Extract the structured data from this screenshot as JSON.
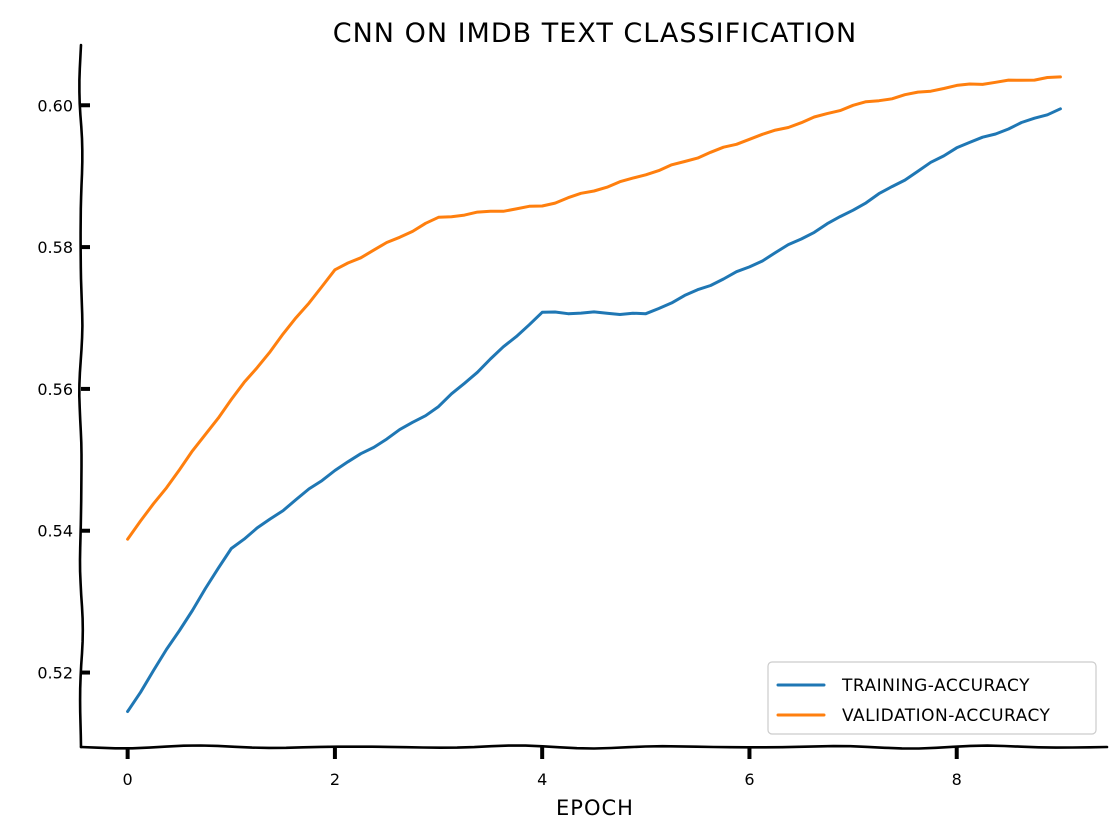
{
  "chart_data": {
    "type": "line",
    "title": "CNN ON IMDB TEXT CLASSIFICATION",
    "xlabel": "EPOCH",
    "ylabel": "",
    "xlim": [
      -0.45,
      9.45
    ],
    "ylim": [
      0.5095,
      0.6085
    ],
    "xticks": [
      0,
      2,
      4,
      6,
      8
    ],
    "yticks": [
      0.52,
      0.54,
      0.56,
      0.58,
      0.6
    ],
    "xtick_labels": [
      "0",
      "2",
      "4",
      "6",
      "8"
    ],
    "ytick_labels": [
      "0.52",
      "0.54",
      "0.56",
      "0.58",
      "0.60"
    ],
    "grid": false,
    "legend_position": "bottom-right",
    "x": [
      0,
      1,
      2,
      3,
      4,
      5,
      6,
      7,
      8,
      9
    ],
    "series": [
      {
        "name": "TRAINING-ACCURACY",
        "color": "#1f77b4",
        "values": [
          0.5145,
          0.5375,
          0.5485,
          0.5575,
          0.5708,
          0.5706,
          0.5772,
          0.5852,
          0.594,
          0.5995
        ]
      },
      {
        "name": "VALIDATION-ACCURACY",
        "color": "#ff7f0e",
        "values": [
          0.5388,
          0.5585,
          0.5768,
          0.5842,
          0.5858,
          0.5902,
          0.5952,
          0.6,
          0.6028,
          0.604
        ]
      }
    ]
  }
}
